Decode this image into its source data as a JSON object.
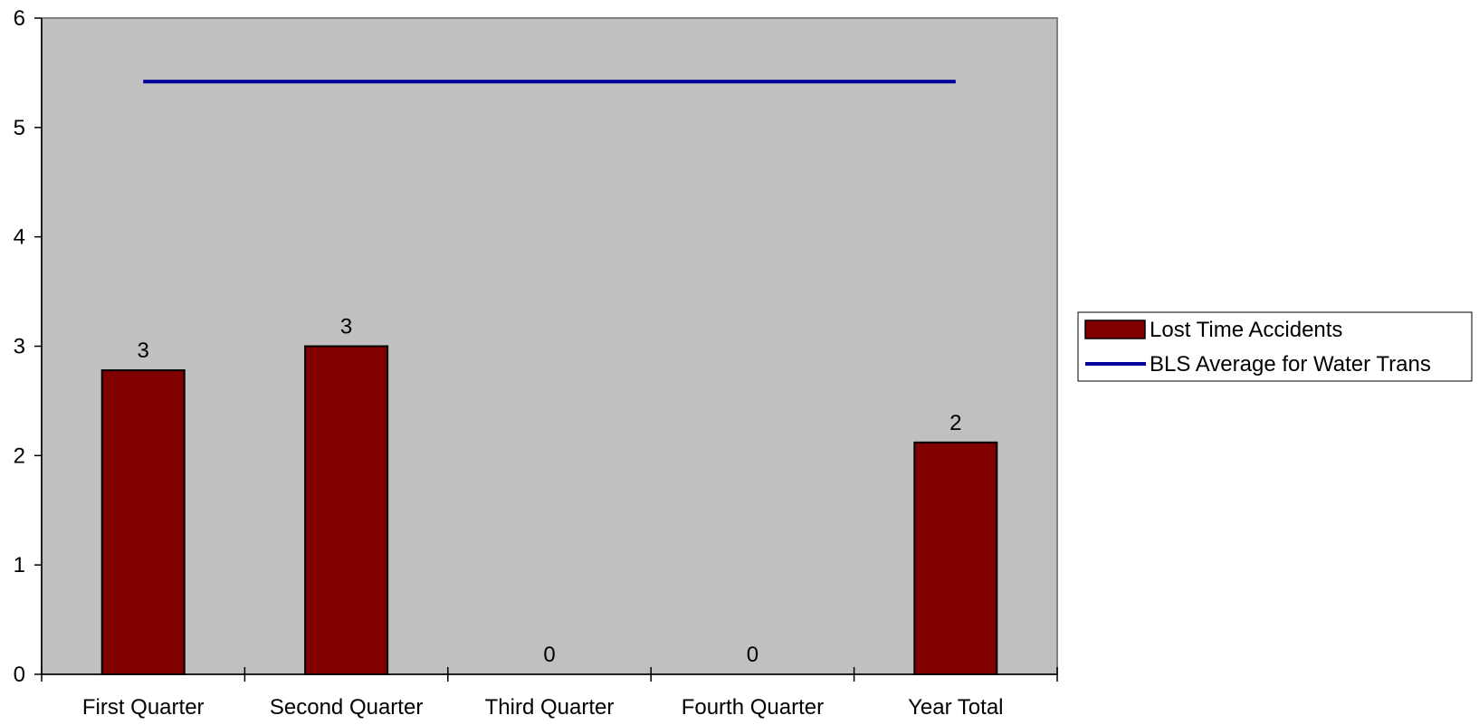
{
  "chart_data": {
    "type": "bar",
    "categories": [
      "First Quarter",
      "Second Quarter",
      "Third Quarter",
      "Fourth Quarter",
      "Year Total"
    ],
    "series": [
      {
        "name": "Lost Time Accidents",
        "type": "bar",
        "values": [
          2.78,
          3.0,
          0,
          0,
          2.12
        ],
        "data_labels": [
          "3",
          "3",
          "0",
          "0",
          "2"
        ],
        "color": "#800000"
      },
      {
        "name": "BLS Average for Water Trans",
        "type": "line",
        "values": [
          5.42,
          5.42,
          5.42,
          5.42,
          5.42
        ],
        "color": "#000099"
      }
    ],
    "yticks": [
      "0",
      "1",
      "2",
      "3",
      "4",
      "5",
      "6"
    ],
    "ylim": [
      0,
      6
    ],
    "grid": false,
    "legend_position": "right",
    "plot_background": "#C0C0C0"
  }
}
